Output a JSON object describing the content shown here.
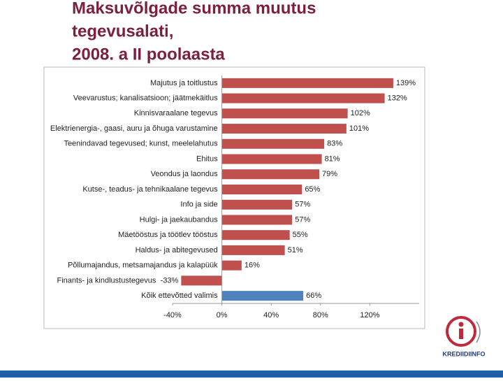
{
  "chart_data": {
    "type": "bar",
    "orientation": "horizontal",
    "title_lines": [
      "Maksuvõlgade summa muutus",
      "tegevusalati,",
      "2008. a II poolaasta"
    ],
    "categories": [
      "Majutus ja toitlustus",
      "Veevarustus; kanalisatsioon; jäätmekäitlus",
      "Kinnisvaraalane tegevus",
      "Elektrienergia-, gaasi, auru ja õhuga varustamine",
      "Teenindavad tegevused; kunst, meelelahutus",
      "Ehitus",
      "Veondus ja laondus",
      "Kutse-, teadus- ja tehnikaalane tegevus",
      "Info ja side",
      "Hulgi- ja jaekaubandus",
      "Mäetööstus ja töötlev tööstus",
      "Haldus- ja abitegevused",
      "Põllumajandus, metsamajandus ja kalapüük",
      "Finants- ja kindlustustegevus",
      "Kõik ettevõtted valimis"
    ],
    "values": [
      139,
      132,
      102,
      101,
      83,
      81,
      79,
      65,
      57,
      57,
      55,
      51,
      16,
      -33,
      66
    ],
    "value_labels": [
      "139%",
      "132%",
      "102%",
      "101%",
      "83%",
      "81%",
      "79%",
      "65%",
      "57%",
      "57%",
      "55%",
      "51%",
      "16%",
      "-33%",
      "66%"
    ],
    "colors": [
      "#c0504d",
      "#c0504d",
      "#c0504d",
      "#c0504d",
      "#c0504d",
      "#c0504d",
      "#c0504d",
      "#c0504d",
      "#c0504d",
      "#c0504d",
      "#c0504d",
      "#c0504d",
      "#c0504d",
      "#c0504d",
      "#4f81bd"
    ],
    "xlim": [
      -40,
      160
    ],
    "xticks": [
      {
        "value": -40,
        "label": "-40%"
      },
      {
        "value": 0,
        "label": "0%"
      },
      {
        "value": 40,
        "label": "40%"
      },
      {
        "value": 80,
        "label": "80%"
      },
      {
        "value": 120,
        "label": "120%"
      }
    ],
    "logo_text": "KREDIIDIINFO"
  }
}
